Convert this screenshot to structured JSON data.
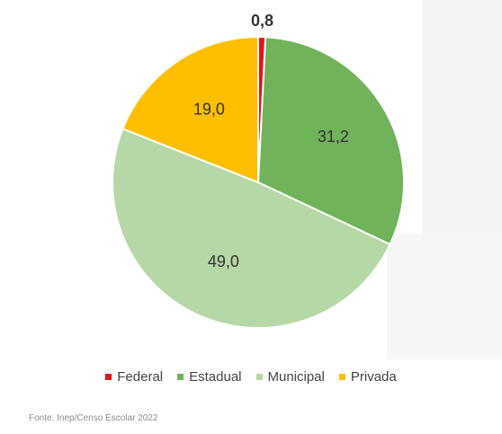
{
  "chart_data": {
    "type": "pie",
    "title": "",
    "series": [
      {
        "name": "Federal",
        "value": 0.8,
        "label": "0,8",
        "color": "#e3121b"
      },
      {
        "name": "Estadual",
        "value": 31.2,
        "label": "31,2",
        "color": "#70b35b"
      },
      {
        "name": "Municipal",
        "value": 49.0,
        "label": "49,0",
        "color": "#b5d8a6"
      },
      {
        "name": "Privada",
        "value": 19.0,
        "label": "19,0",
        "color": "#fdbf00"
      }
    ],
    "legend_position": "bottom",
    "start_angle_deg": 0,
    "direction": "clockwise"
  },
  "legend": {
    "items": [
      {
        "label": "Federal",
        "color": "#e3121b"
      },
      {
        "label": "Estadual",
        "color": "#70b35b"
      },
      {
        "label": "Municipal",
        "color": "#b5d8a6"
      },
      {
        "label": "Privada",
        "color": "#fdbf00"
      }
    ]
  },
  "source": "Fonte: Inep/Censo Escolar 2022"
}
